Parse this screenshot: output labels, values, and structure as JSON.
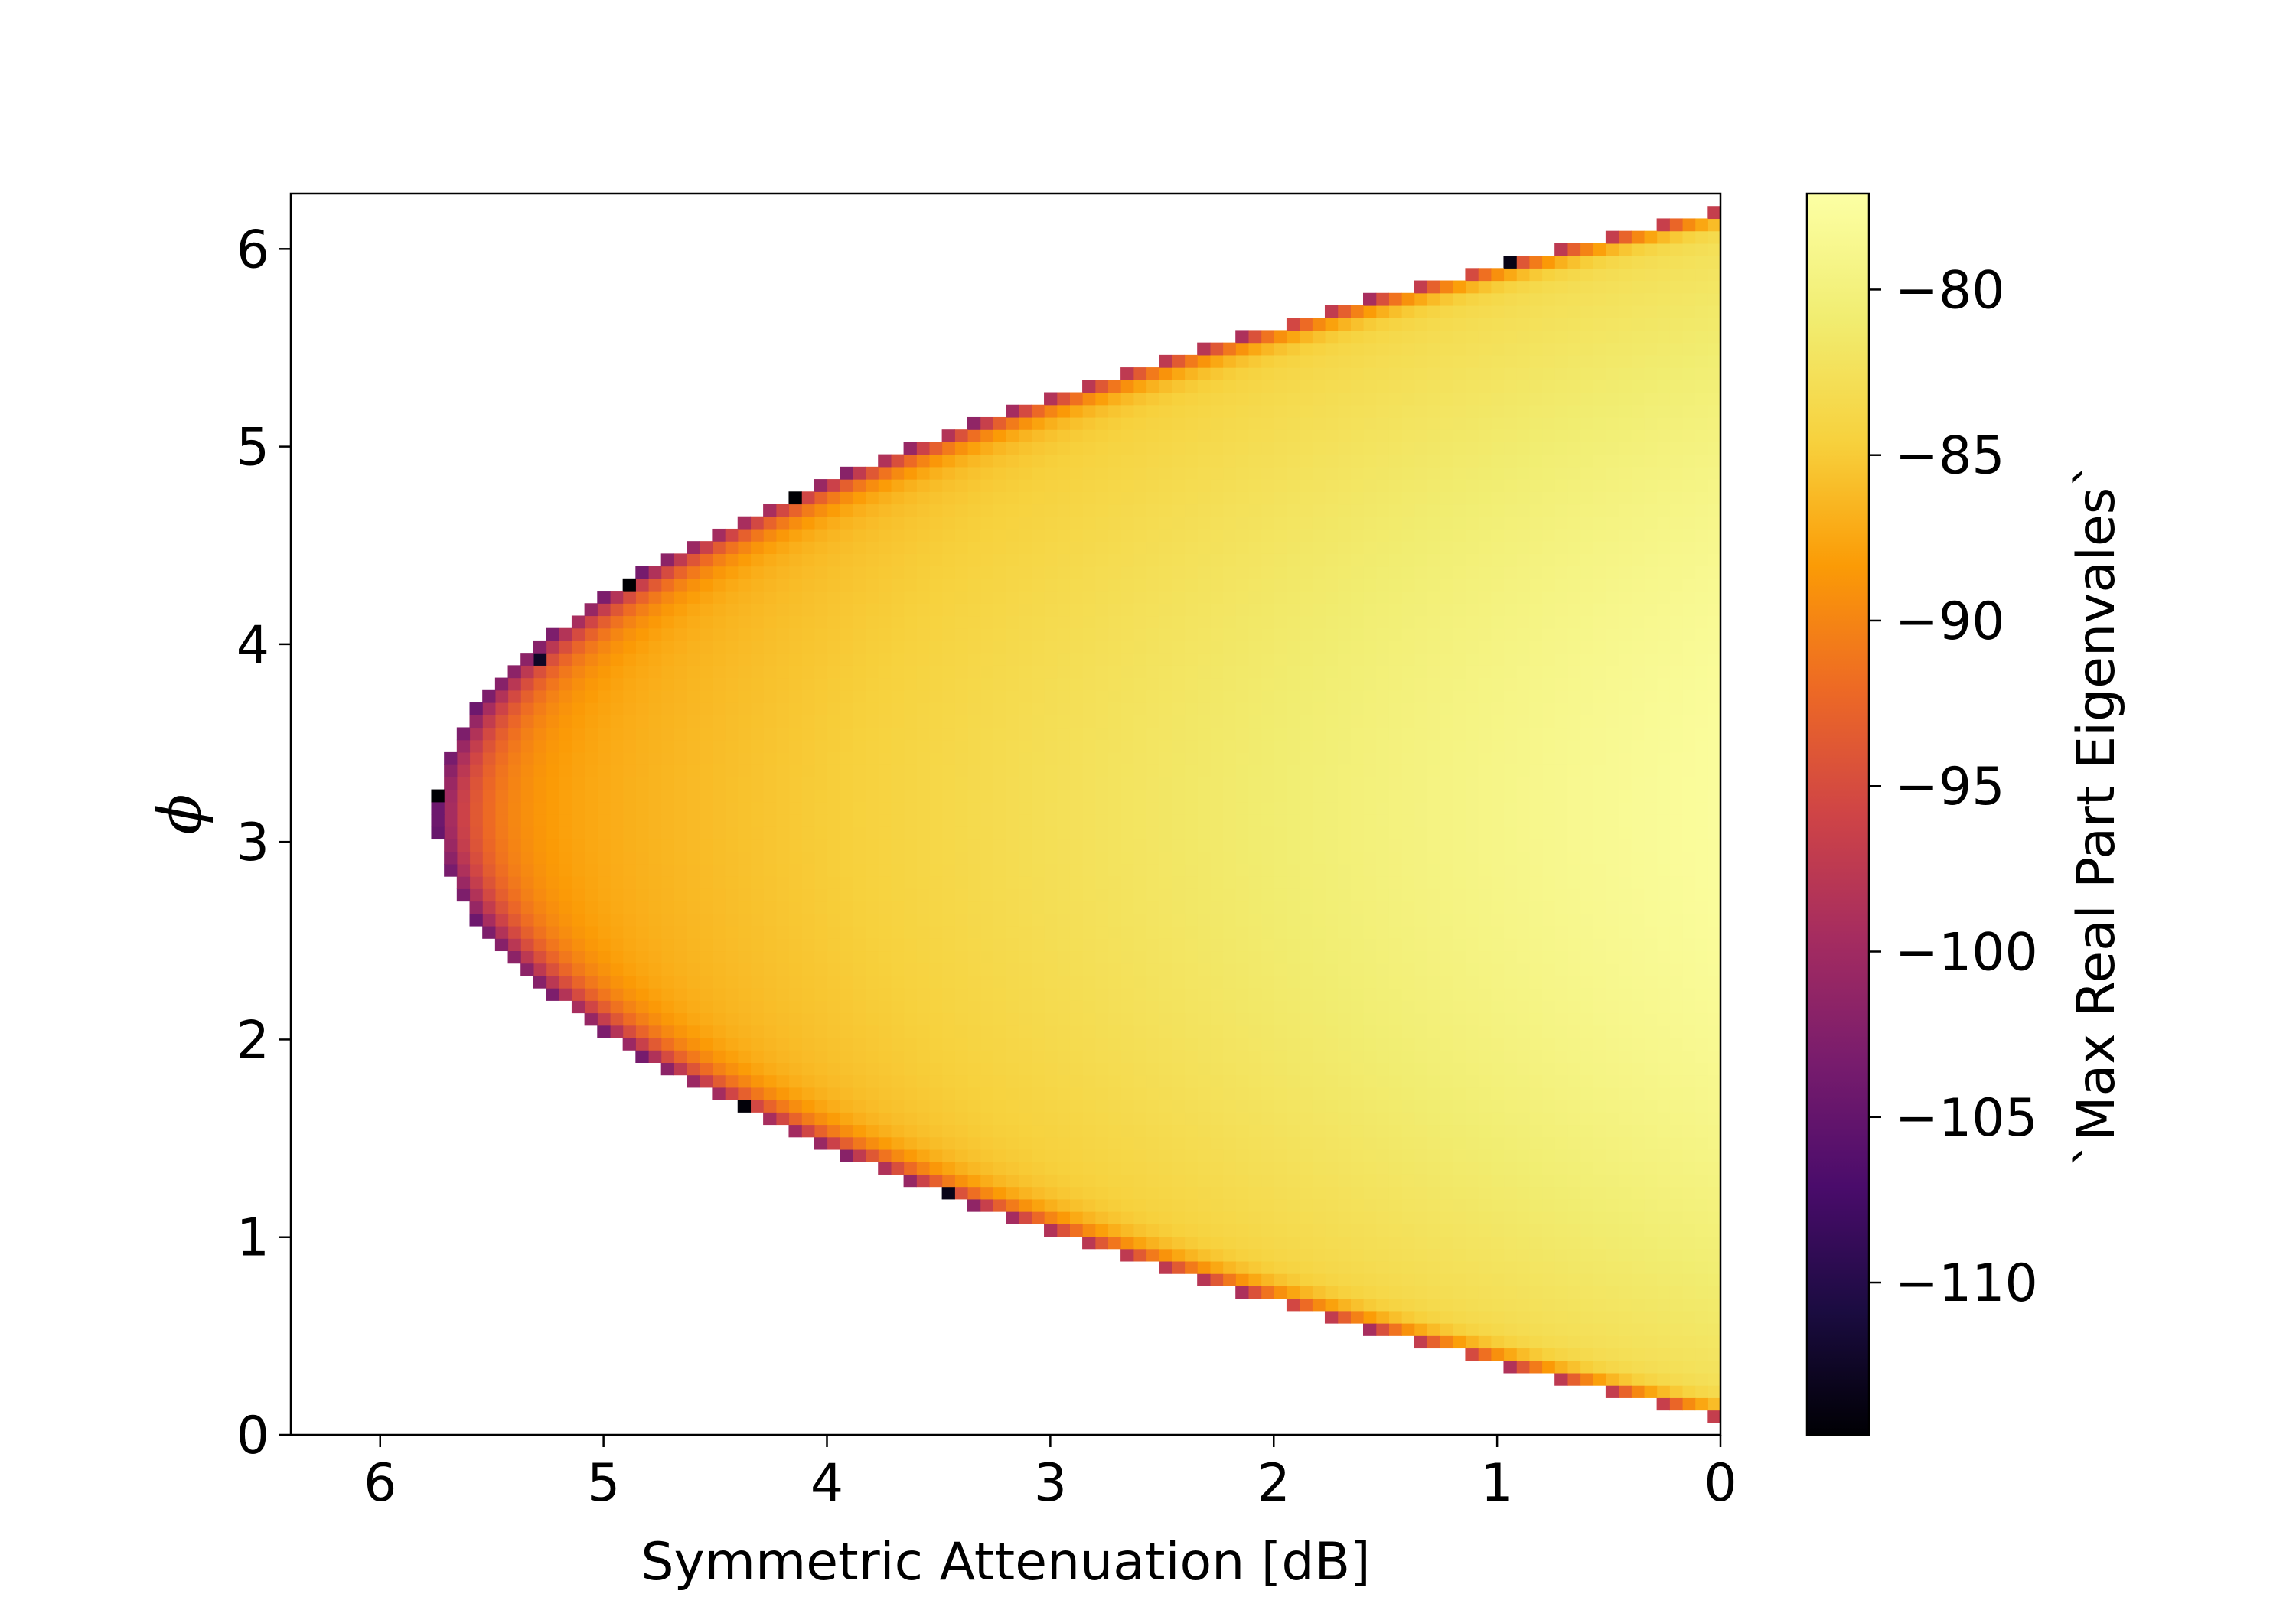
{
  "chart_data": {
    "type": "heatmap",
    "xlabel": "Symmetric Attenuation [dB]",
    "ylabel": "ϕ",
    "colorbar_label": "`Max Real Part Eigenvales`",
    "colormap": "inferno",
    "x_inverted": true,
    "xlim": [
      6.4,
      0
    ],
    "ylim": [
      0,
      6.28
    ],
    "zlim": [
      -114.6,
      -77.1
    ],
    "x_ticks": [
      "6",
      "5",
      "4",
      "3",
      "2",
      "1",
      "0"
    ],
    "x_tick_values": [
      6,
      5,
      4,
      3,
      2,
      1,
      0
    ],
    "y_ticks": [
      "0",
      "1",
      "2",
      "3",
      "4",
      "5",
      "6"
    ],
    "y_tick_values": [
      0,
      1,
      2,
      3,
      4,
      5,
      6
    ],
    "colorbar_ticks": [
      "−80",
      "−85",
      "−90",
      "−95",
      "−100",
      "−105",
      "−110"
    ],
    "colorbar_tick_values": [
      -80,
      -85,
      -90,
      -95,
      -100,
      -105,
      -110
    ],
    "region_boundary": {
      "description": "stable region bounded by parabola",
      "vertex_x": 5.75,
      "vertex_y": 3.14,
      "edge_at_x0": [
        0.08,
        6.2
      ]
    },
    "representative_values": [
      {
        "x": 0,
        "y": 3.14,
        "z": -77.5
      },
      {
        "x": 0,
        "y": 1.0,
        "z": -84
      },
      {
        "x": 2,
        "y": 3.14,
        "z": -80.5
      },
      {
        "x": 4,
        "y": 3.14,
        "z": -85
      },
      {
        "x": 5.5,
        "y": 3.14,
        "z": -89
      },
      {
        "x": 5.75,
        "y": 3.14,
        "z": -97
      }
    ],
    "grid": false,
    "legend": "colorbar-right"
  }
}
